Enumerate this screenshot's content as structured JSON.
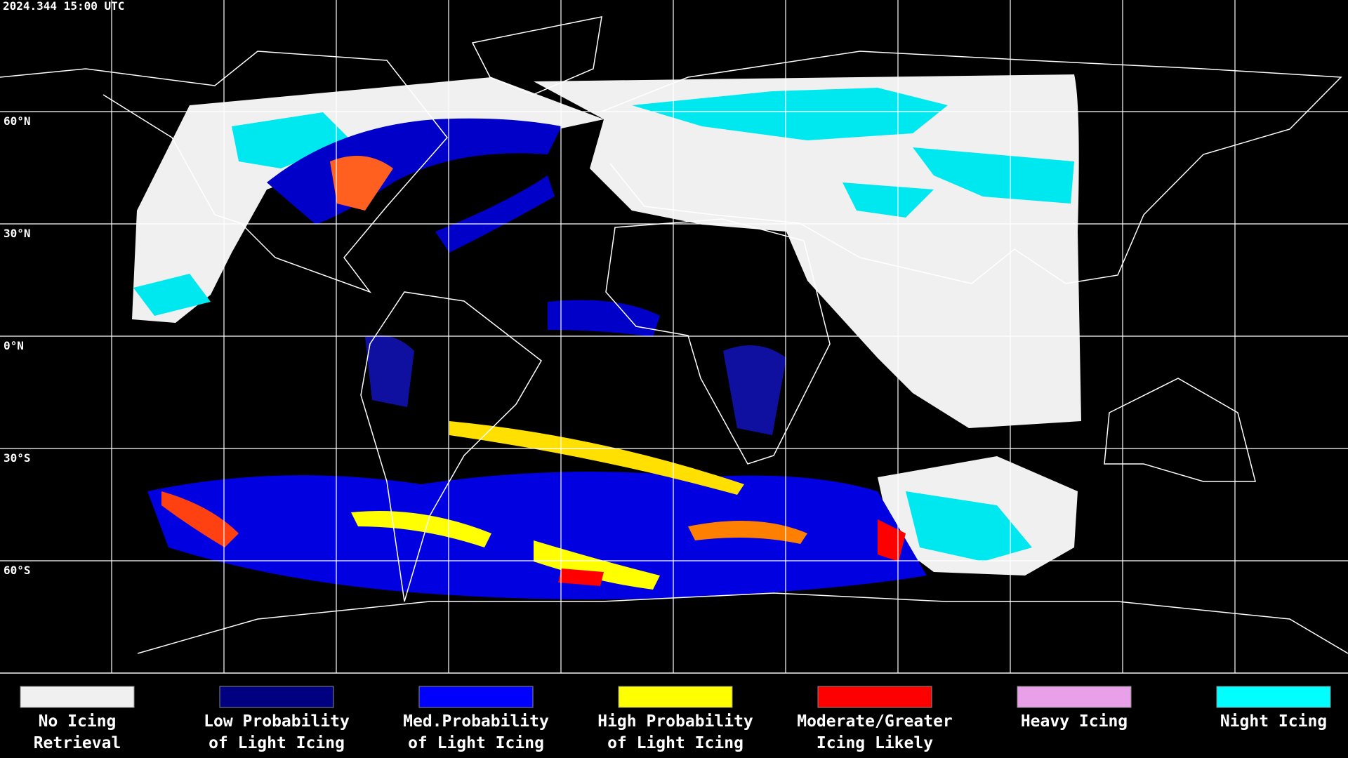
{
  "header": {
    "timestamp": "2024.344 15:00 UTC"
  },
  "grid": {
    "latitude_labels": [
      "60°N",
      "30°N",
      "0°N",
      "30°S",
      "60°S"
    ]
  },
  "legend": [
    {
      "label_lines": [
        "No Icing",
        "Retrieval"
      ],
      "color": "#f0f0f0"
    },
    {
      "label_lines": [
        "Low Probability",
        "of Light Icing"
      ],
      "color": "#000080"
    },
    {
      "label_lines": [
        "Med.Probability",
        "of Light Icing"
      ],
      "color": "#0000ff"
    },
    {
      "label_lines": [
        "High Probability",
        "of Light Icing"
      ],
      "color": "#ffff00"
    },
    {
      "label_lines": [
        "Moderate/Greater",
        "Icing Likely"
      ],
      "color": "#ff0000"
    },
    {
      "label_lines": [
        "Heavy Icing"
      ],
      "color": "#e8a0e8"
    },
    {
      "label_lines": [
        "Night Icing"
      ],
      "color": "#00ffff"
    }
  ]
}
